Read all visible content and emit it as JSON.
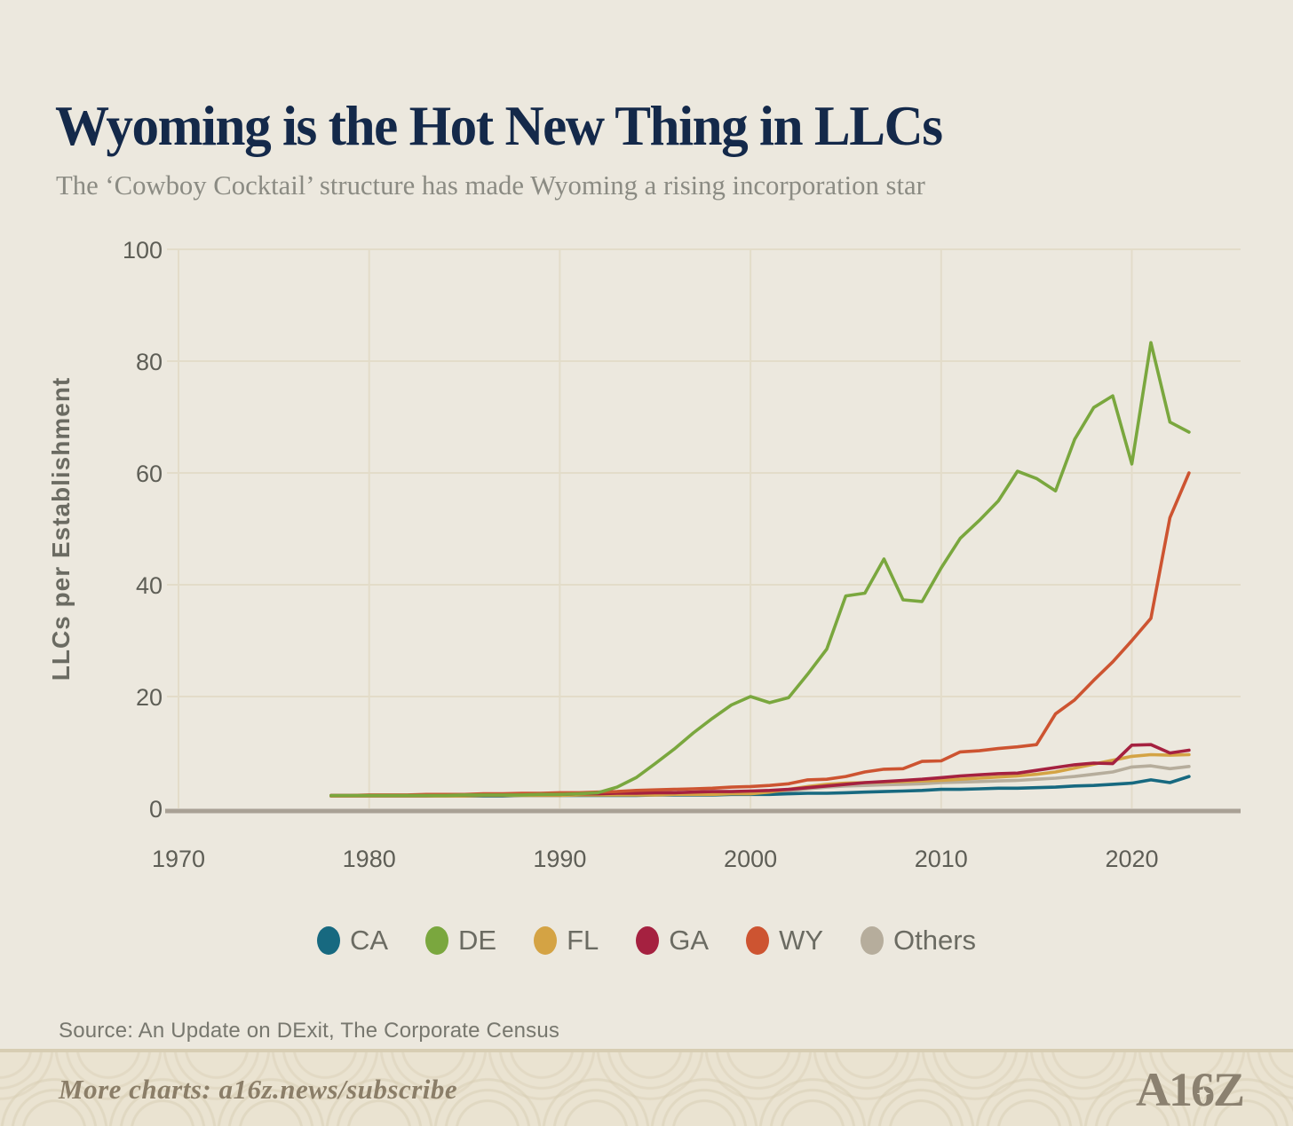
{
  "header": {
    "title": "Wyoming is the Hot New Thing in LLCs",
    "subtitle": "The ‘Cowboy Cocktail’ structure has made Wyoming a rising incorporation star"
  },
  "source_note": "Source: An Update on DExit, The Corporate Census",
  "footer": {
    "more_charts": "More charts: a16z.news/subscribe",
    "logo_text": "A16Z"
  },
  "colors": {
    "page_bg": "#ece8de",
    "gridline": "#e3dcc9",
    "axis_line": "#a9a195",
    "tick_text": "#5e5e56",
    "axis_title_text": "#6b6b62",
    "title_text": "#14294a",
    "subtitle_text": "#8b8b83",
    "source_text": "#77776e",
    "footer_bg": "#eae3d1",
    "footer_border": "#d7cdb3",
    "footer_text": "#8b7e68",
    "logo": "#8b8170"
  },
  "chart_data": {
    "type": "line",
    "title": "Wyoming is the Hot New Thing in LLCs",
    "xlabel": "",
    "ylabel": "LLCs per Establishment",
    "xlim": [
      1968,
      2025.5
    ],
    "ylim": [
      0,
      100
    ],
    "x_ticks": [
      1970,
      1980,
      1990,
      2000,
      2010,
      2020
    ],
    "y_ticks": [
      0,
      20,
      40,
      60,
      80,
      100
    ],
    "grid": true,
    "legend_position": "bottom",
    "x": [
      1978,
      1979,
      1980,
      1981,
      1982,
      1983,
      1984,
      1985,
      1986,
      1987,
      1988,
      1989,
      1990,
      1991,
      1992,
      1993,
      1994,
      1995,
      1996,
      1997,
      1998,
      1999,
      2000,
      2001,
      2002,
      2003,
      2004,
      2005,
      2006,
      2007,
      2008,
      2009,
      2010,
      2011,
      2012,
      2013,
      2014,
      2015,
      2016,
      2017,
      2018,
      2019,
      2020,
      2021,
      2022,
      2023
    ],
    "z_order": [
      "Others",
      "CA",
      "FL",
      "GA",
      "WY",
      "DE"
    ],
    "series": [
      {
        "name": "CA",
        "color": "#176980",
        "values": [
          2.2,
          2.2,
          2.2,
          2.2,
          2.2,
          2.2,
          2.2,
          2.2,
          2.2,
          2.2,
          2.3,
          2.3,
          2.3,
          2.3,
          2.3,
          2.3,
          2.3,
          2.4,
          2.4,
          2.4,
          2.4,
          2.5,
          2.5,
          2.5,
          2.6,
          2.7,
          2.7,
          2.8,
          2.9,
          3.0,
          3.1,
          3.2,
          3.4,
          3.4,
          3.5,
          3.6,
          3.6,
          3.7,
          3.8,
          4.0,
          4.1,
          4.3,
          4.5,
          5.1,
          4.6,
          5.7
        ]
      },
      {
        "name": "DE",
        "color": "#7aa73e",
        "values": [
          2.3,
          2.3,
          2.3,
          2.3,
          2.3,
          2.3,
          2.3,
          2.4,
          2.4,
          2.4,
          2.4,
          2.5,
          2.5,
          2.6,
          2.8,
          3.8,
          5.5,
          8.0,
          10.6,
          13.5,
          16.1,
          18.5,
          20.0,
          18.9,
          19.8,
          24.0,
          28.5,
          38.0,
          38.5,
          44.6,
          37.3,
          37.0,
          43.0,
          48.3,
          51.5,
          55.0,
          60.3,
          59.0,
          56.8,
          66.0,
          71.7,
          73.8,
          61.6,
          83.3,
          69.1,
          67.3
        ]
      },
      {
        "name": "FL",
        "color": "#d4a344",
        "values": [
          2.2,
          2.2,
          2.2,
          2.2,
          2.2,
          2.2,
          2.2,
          2.2,
          2.3,
          2.3,
          2.3,
          2.3,
          2.3,
          2.4,
          2.4,
          2.4,
          2.4,
          2.4,
          2.5,
          2.5,
          2.5,
          2.6,
          2.6,
          2.9,
          3.4,
          3.9,
          4.3,
          4.5,
          4.6,
          4.7,
          4.8,
          4.9,
          5.0,
          5.2,
          5.4,
          5.6,
          5.8,
          6.1,
          6.5,
          7.2,
          7.9,
          8.6,
          9.3,
          9.6,
          9.5,
          9.6
        ]
      },
      {
        "name": "GA",
        "color": "#a52140",
        "values": [
          2.3,
          2.3,
          2.3,
          2.3,
          2.3,
          2.3,
          2.4,
          2.4,
          2.4,
          2.4,
          2.5,
          2.5,
          2.5,
          2.6,
          2.6,
          2.7,
          2.7,
          2.8,
          2.8,
          2.9,
          3.0,
          3.0,
          3.1,
          3.2,
          3.4,
          3.7,
          4.0,
          4.3,
          4.6,
          4.8,
          5.0,
          5.2,
          5.5,
          5.8,
          6.0,
          6.2,
          6.3,
          6.8,
          7.3,
          7.8,
          8.1,
          8.0,
          11.3,
          11.4,
          9.9,
          10.4
        ]
      },
      {
        "name": "WY",
        "color": "#cd5431",
        "values": [
          2.3,
          2.3,
          2.4,
          2.4,
          2.4,
          2.5,
          2.5,
          2.5,
          2.6,
          2.6,
          2.7,
          2.7,
          2.8,
          2.8,
          2.9,
          3.0,
          3.2,
          3.3,
          3.4,
          3.5,
          3.6,
          3.8,
          3.9,
          4.1,
          4.4,
          5.1,
          5.2,
          5.7,
          6.5,
          7.0,
          7.1,
          8.4,
          8.5,
          10.1,
          10.3,
          10.7,
          11.0,
          11.4,
          16.9,
          19.4,
          22.9,
          26.2,
          30.0,
          34.0,
          52.0,
          60.0
        ]
      },
      {
        "name": "Others",
        "color": "#b6ad9c",
        "values": [
          2.3,
          2.3,
          2.3,
          2.3,
          2.3,
          2.3,
          2.3,
          2.3,
          2.4,
          2.4,
          2.4,
          2.4,
          2.4,
          2.5,
          2.5,
          2.5,
          2.6,
          2.6,
          2.6,
          2.7,
          2.7,
          2.7,
          2.8,
          2.9,
          3.1,
          3.5,
          3.8,
          4.0,
          4.1,
          4.2,
          4.3,
          4.4,
          4.6,
          4.7,
          4.8,
          4.9,
          5.0,
          5.2,
          5.4,
          5.7,
          6.1,
          6.5,
          7.4,
          7.6,
          7.1,
          7.5
        ]
      }
    ]
  }
}
